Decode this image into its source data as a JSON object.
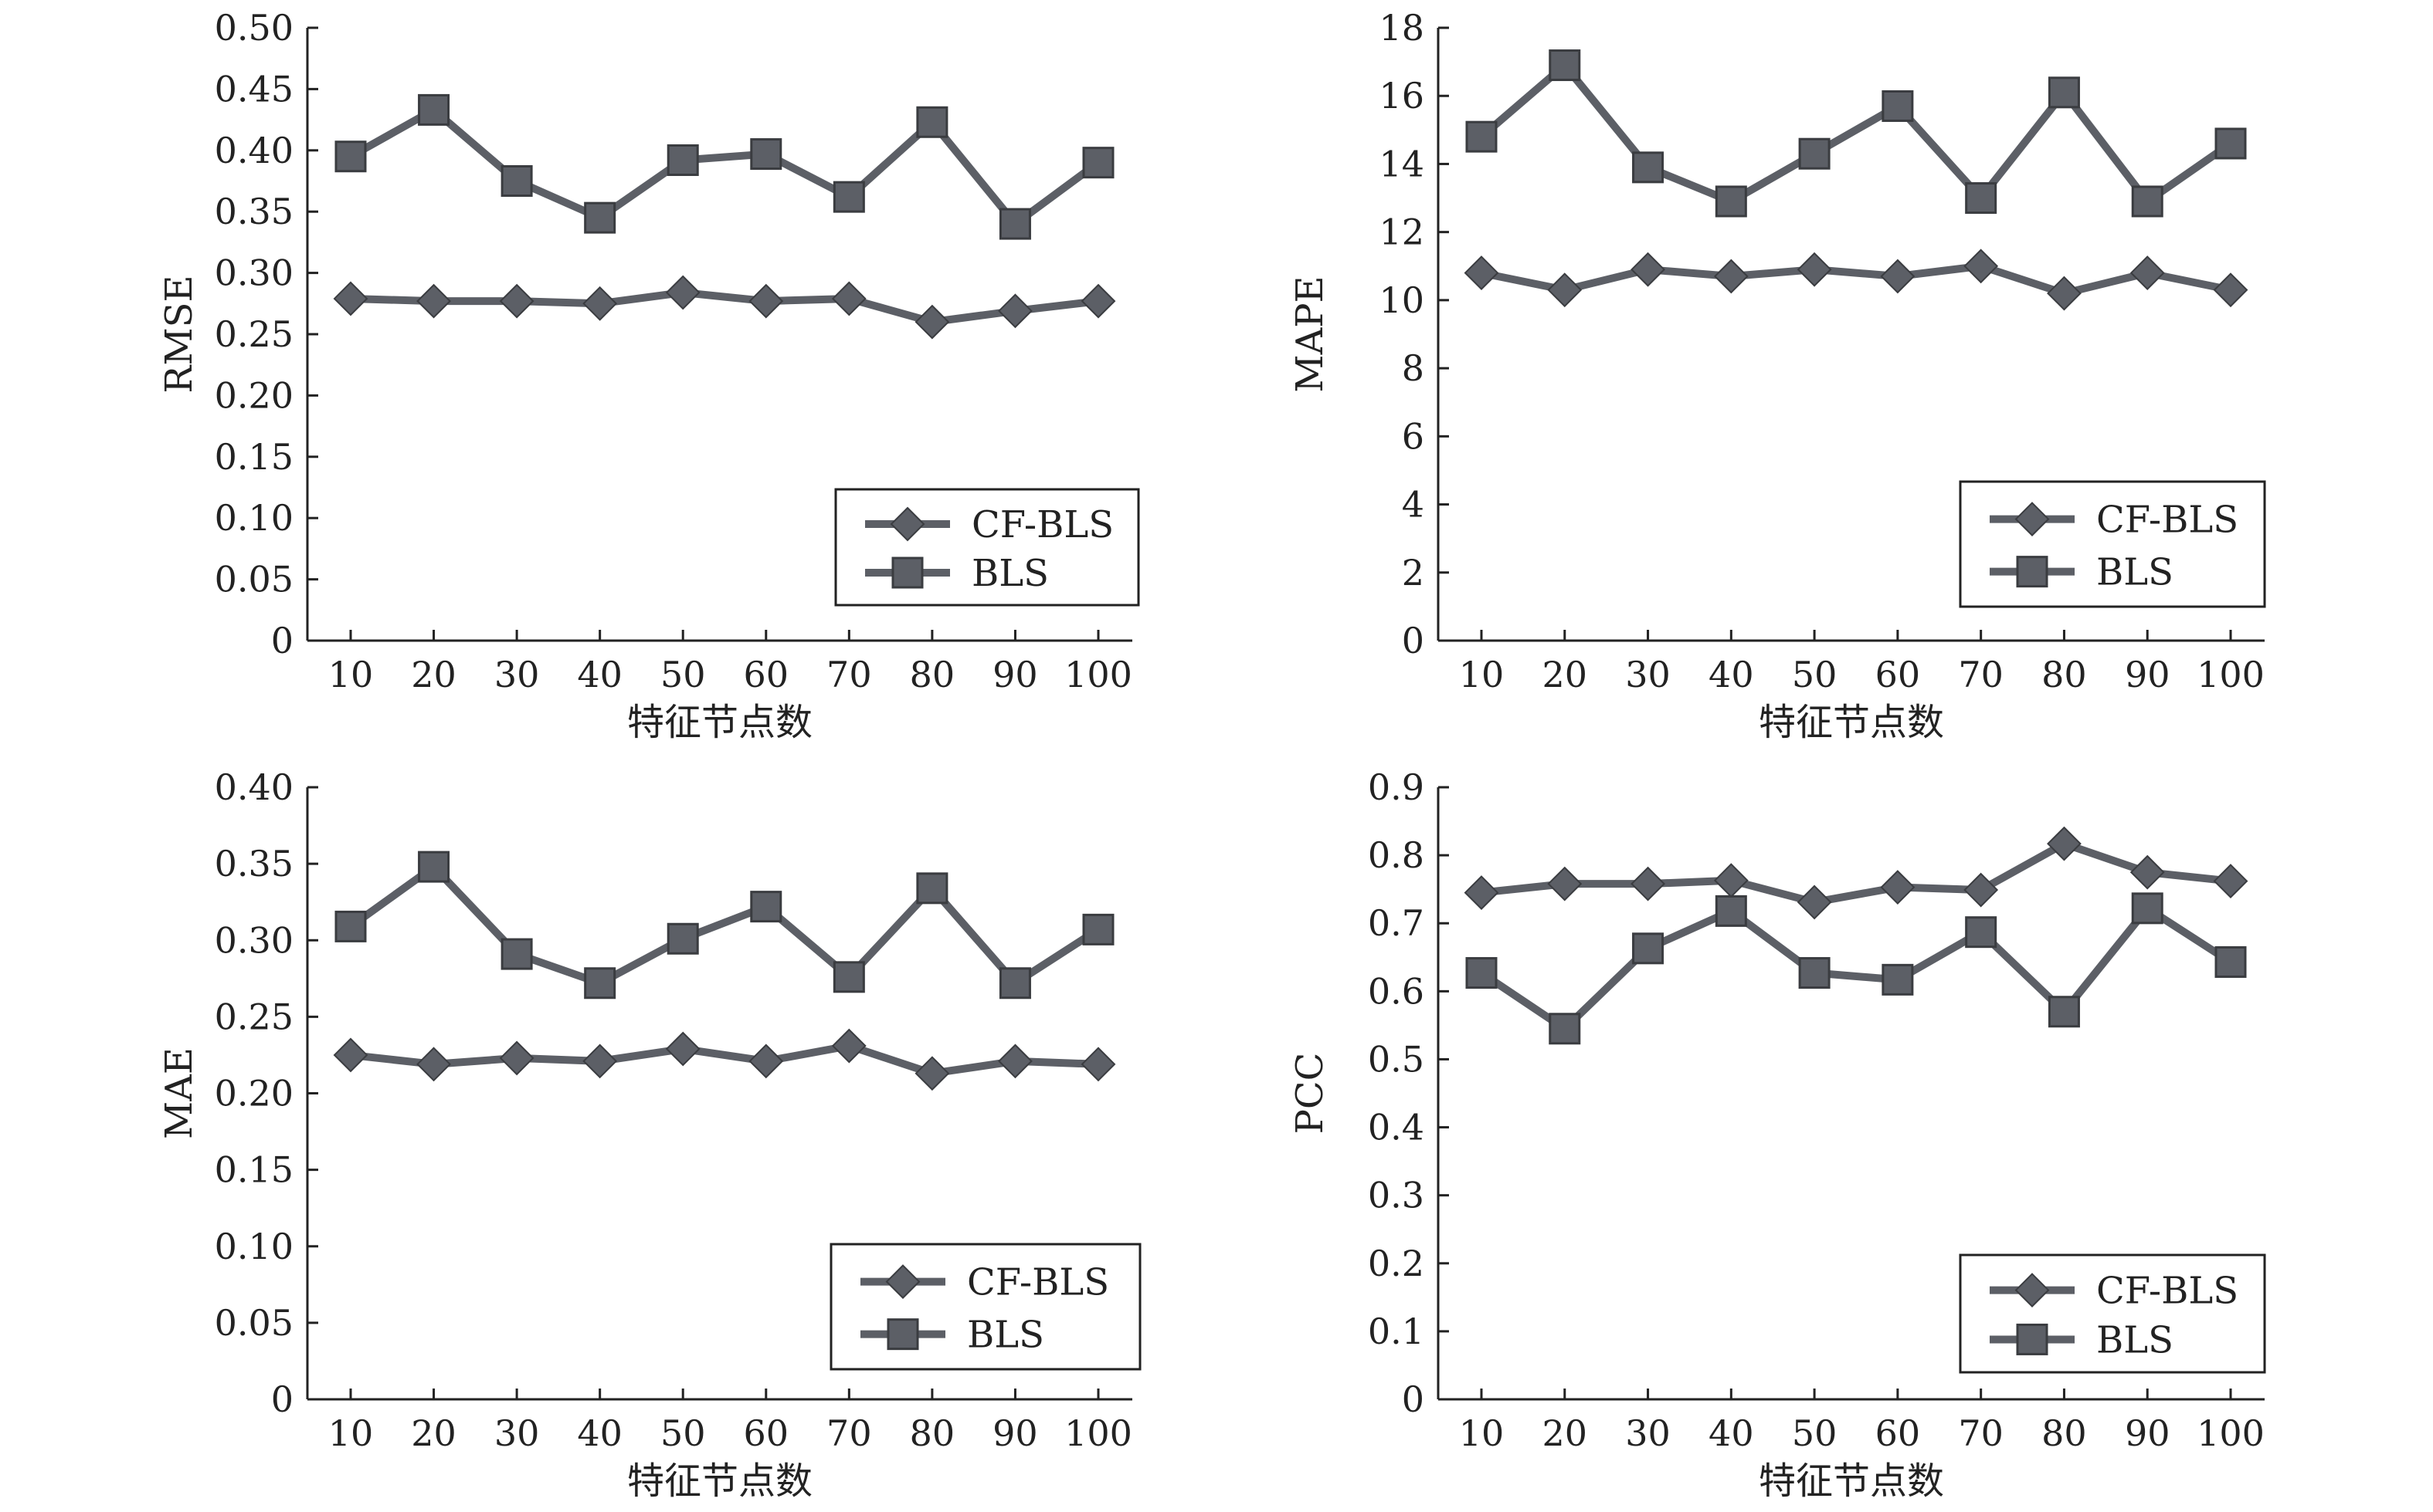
{
  "chart_data": [
    {
      "type": "line",
      "x": [
        10,
        20,
        30,
        40,
        50,
        60,
        70,
        80,
        90,
        100
      ],
      "xlabel": "特征节点数",
      "ylabel": "RMSE",
      "ylim": [
        0,
        0.5
      ],
      "yticks": [
        "0",
        "0.05",
        "0.10",
        "0.15",
        "0.20",
        "0.25",
        "0.30",
        "0.35",
        "0.40",
        "0.45",
        "0.50"
      ],
      "legend_position": "bottom-right",
      "series": [
        {
          "name": "CF-BLS",
          "marker": "diamond",
          "values": [
            0.279,
            0.277,
            0.277,
            0.275,
            0.284,
            0.277,
            0.279,
            0.26,
            0.269,
            0.277
          ]
        },
        {
          "name": "BLS",
          "marker": "square",
          "values": [
            0.395,
            0.433,
            0.375,
            0.345,
            0.392,
            0.397,
            0.362,
            0.423,
            0.34,
            0.39
          ]
        }
      ]
    },
    {
      "type": "line",
      "x": [
        10,
        20,
        30,
        40,
        50,
        60,
        70,
        80,
        90,
        100
      ],
      "xlabel": "特征节点数",
      "ylabel": "MAPE",
      "ylim": [
        0,
        18
      ],
      "yticks": [
        "0",
        "2",
        "4",
        "6",
        "8",
        "10",
        "12",
        "14",
        "16",
        "18"
      ],
      "legend_position": "bottom-right",
      "series": [
        {
          "name": "CF-BLS",
          "marker": "diamond",
          "values": [
            10.8,
            10.3,
            10.9,
            10.7,
            10.9,
            10.7,
            11.0,
            10.2,
            10.8,
            10.3
          ]
        },
        {
          "name": "BLS",
          "marker": "square",
          "values": [
            14.8,
            16.9,
            13.9,
            12.9,
            14.3,
            15.7,
            13.0,
            16.1,
            12.9,
            14.6
          ]
        }
      ]
    },
    {
      "type": "line",
      "x": [
        10,
        20,
        30,
        40,
        50,
        60,
        70,
        80,
        90,
        100
      ],
      "xlabel": "特征节点数",
      "ylabel": "MAE",
      "ylim": [
        0,
        0.4
      ],
      "yticks": [
        "0",
        "0.05",
        "0.10",
        "0.15",
        "0.20",
        "0.25",
        "0.30",
        "0.35",
        "0.40"
      ],
      "legend_position": "bottom-right",
      "series": [
        {
          "name": "CF-BLS",
          "marker": "diamond",
          "values": [
            0.225,
            0.219,
            0.223,
            0.221,
            0.229,
            0.221,
            0.231,
            0.213,
            0.221,
            0.219
          ]
        },
        {
          "name": "BLS",
          "marker": "square",
          "values": [
            0.309,
            0.348,
            0.291,
            0.272,
            0.301,
            0.322,
            0.276,
            0.334,
            0.272,
            0.307
          ]
        }
      ]
    },
    {
      "type": "line",
      "x": [
        10,
        20,
        30,
        40,
        50,
        60,
        70,
        80,
        90,
        100
      ],
      "xlabel": "特征节点数",
      "ylabel": "PCC",
      "ylim": [
        0,
        0.9
      ],
      "yticks": [
        "0",
        "0.1",
        "0.2",
        "0.3",
        "0.4",
        "0.5",
        "0.6",
        "0.7",
        "0.8",
        "0.9"
      ],
      "legend_position": "bottom-right",
      "series": [
        {
          "name": "CF-BLS",
          "marker": "diamond",
          "values": [
            0.745,
            0.758,
            0.758,
            0.763,
            0.731,
            0.753,
            0.749,
            0.817,
            0.775,
            0.762
          ]
        },
        {
          "name": "BLS",
          "marker": "square",
          "values": [
            0.627,
            0.545,
            0.663,
            0.718,
            0.627,
            0.617,
            0.687,
            0.57,
            0.722,
            0.643
          ]
        }
      ]
    }
  ]
}
